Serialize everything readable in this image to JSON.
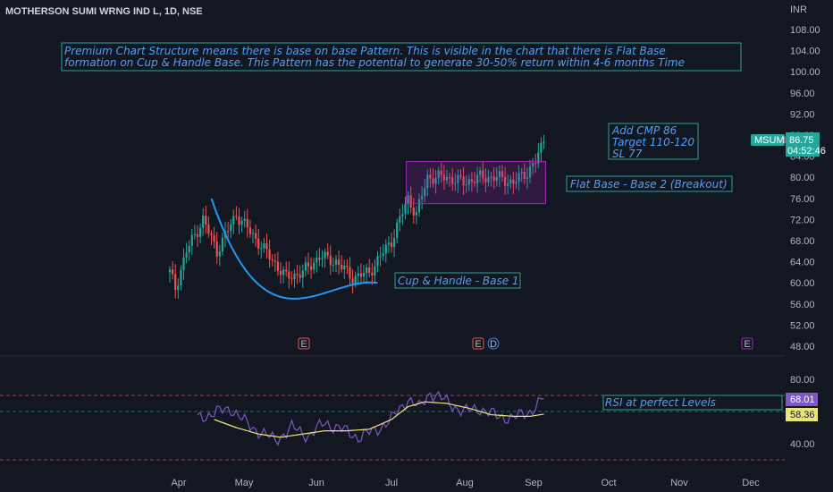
{
  "header": {
    "title": "MOTHERSON SUMI WRNG IND L, 1D, NSE",
    "currency": "INR"
  },
  "colors": {
    "up": "#26a69a",
    "down": "#ef5350",
    "rsi": "#7e57c2",
    "rsi_ma": "#e9e57c",
    "note": "#4f9ff5",
    "box": "#9c27b0",
    "note_border": "#26a69a",
    "background": "#131722"
  },
  "annotations": {
    "premium_line1": "Premium Chart Structure means there is base on base Pattern. This is visible in the chart that there is Flat Base",
    "premium_line2": "formation on Cup & Handle Base. This Pattern has the potential to generate 30-50% return within 4-6 months Time",
    "trade_line1": "Add CMP 86",
    "trade_line2": "Target 110-120",
    "trade_line3": "SL 77",
    "flat_base": "Flat Base - Base 2 (Breakout)",
    "cup_handle": "Cup & Handle - Base 1",
    "rsi_note": "RSI at perfect Levels"
  },
  "price_tag": {
    "symbol": "MSUMI",
    "price": "86.75",
    "countdown": "04:52:46"
  },
  "rsi_tags": {
    "rsi": "68.01",
    "rsi_ma": "58.36"
  },
  "event_markers": [
    {
      "label": "E",
      "kind": "earnings",
      "date": "Jun"
    },
    {
      "label": "E",
      "kind": "earnings",
      "date": "Aug"
    },
    {
      "label": "D",
      "kind": "dividend",
      "date": "Aug"
    },
    {
      "label": "E",
      "kind": "earnings",
      "date": "Nov"
    }
  ],
  "chart_data": [
    {
      "type": "candlestick",
      "title": "MOTHERSON SUMI WRNG IND L, 1D, NSE",
      "ylabel": "INR",
      "ylim": [
        48,
        108
      ],
      "ticks_y": [
        "108.00",
        "104.00",
        "100.00",
        "96.00",
        "92.00",
        "88.00",
        "84.00",
        "80.00",
        "76.00",
        "72.00",
        "68.00",
        "64.00",
        "60.00",
        "56.00",
        "52.00",
        "48.00"
      ],
      "months": [
        "Apr",
        "May",
        "Jun",
        "Jul",
        "Aug",
        "Sep",
        "Oct",
        "Nov",
        "Dec"
      ],
      "last_price": 86.75,
      "anchors": [
        {
          "x": 0,
          "v": 62
        },
        {
          "x": 2,
          "v": 59
        },
        {
          "x": 6,
          "v": 66
        },
        {
          "x": 12,
          "v": 72
        },
        {
          "x": 17,
          "v": 66
        },
        {
          "x": 24,
          "v": 73
        },
        {
          "x": 30,
          "v": 69
        },
        {
          "x": 36,
          "v": 65
        },
        {
          "x": 42,
          "v": 61
        },
        {
          "x": 48,
          "v": 62
        },
        {
          "x": 54,
          "v": 65
        },
        {
          "x": 60,
          "v": 64
        },
        {
          "x": 66,
          "v": 61
        },
        {
          "x": 72,
          "v": 62
        },
        {
          "x": 80,
          "v": 68
        },
        {
          "x": 86,
          "v": 76
        },
        {
          "x": 89,
          "v": 73
        },
        {
          "x": 93,
          "v": 80
        },
        {
          "x": 100,
          "v": 80
        },
        {
          "x": 106,
          "v": 79
        },
        {
          "x": 112,
          "v": 80
        },
        {
          "x": 118,
          "v": 80
        },
        {
          "x": 124,
          "v": 79
        },
        {
          "x": 129,
          "v": 81
        },
        {
          "x": 132,
          "v": 83
        },
        {
          "x": 135,
          "v": 86.75
        }
      ],
      "flat_base_box": {
        "from": 86,
        "to": 135,
        "low": 75,
        "high": 83
      },
      "cup_curve": {
        "from": 15,
        "bottom": 52,
        "to": 75,
        "top_left": 76,
        "low": 57,
        "top_right": 60
      }
    },
    {
      "type": "line",
      "title": "RSI",
      "ylim": [
        30,
        90
      ],
      "ticks_y": [
        "80.00",
        "60.00",
        "40.00"
      ],
      "levels": [
        70,
        30
      ],
      "series": [
        {
          "kind": "rsi",
          "anchors": [
            {
              "x": 10,
              "v": 56
            },
            {
              "x": 16,
              "v": 59
            },
            {
              "x": 22,
              "v": 62
            },
            {
              "x": 28,
              "v": 52
            },
            {
              "x": 34,
              "v": 46
            },
            {
              "x": 38,
              "v": 42
            },
            {
              "x": 44,
              "v": 50
            },
            {
              "x": 50,
              "v": 45
            },
            {
              "x": 56,
              "v": 53
            },
            {
              "x": 62,
              "v": 49
            },
            {
              "x": 68,
              "v": 44
            },
            {
              "x": 74,
              "v": 48
            },
            {
              "x": 80,
              "v": 55
            },
            {
              "x": 86,
              "v": 68
            },
            {
              "x": 90,
              "v": 62
            },
            {
              "x": 94,
              "v": 72
            },
            {
              "x": 100,
              "v": 66
            },
            {
              "x": 106,
              "v": 60
            },
            {
              "x": 112,
              "v": 62
            },
            {
              "x": 118,
              "v": 57
            },
            {
              "x": 124,
              "v": 56
            },
            {
              "x": 130,
              "v": 60
            },
            {
              "x": 135,
              "v": 68.01
            }
          ]
        },
        {
          "kind": "rsi_ma",
          "anchors": [
            {
              "x": 16,
              "v": 55
            },
            {
              "x": 24,
              "v": 50
            },
            {
              "x": 32,
              "v": 46
            },
            {
              "x": 40,
              "v": 44
            },
            {
              "x": 48,
              "v": 46
            },
            {
              "x": 56,
              "v": 48
            },
            {
              "x": 64,
              "v": 48
            },
            {
              "x": 72,
              "v": 49
            },
            {
              "x": 80,
              "v": 55
            },
            {
              "x": 86,
              "v": 63
            },
            {
              "x": 92,
              "v": 66
            },
            {
              "x": 100,
              "v": 65
            },
            {
              "x": 108,
              "v": 62
            },
            {
              "x": 116,
              "v": 58
            },
            {
              "x": 124,
              "v": 57
            },
            {
              "x": 130,
              "v": 57
            },
            {
              "x": 135,
              "v": 58.36
            }
          ]
        }
      ]
    }
  ]
}
